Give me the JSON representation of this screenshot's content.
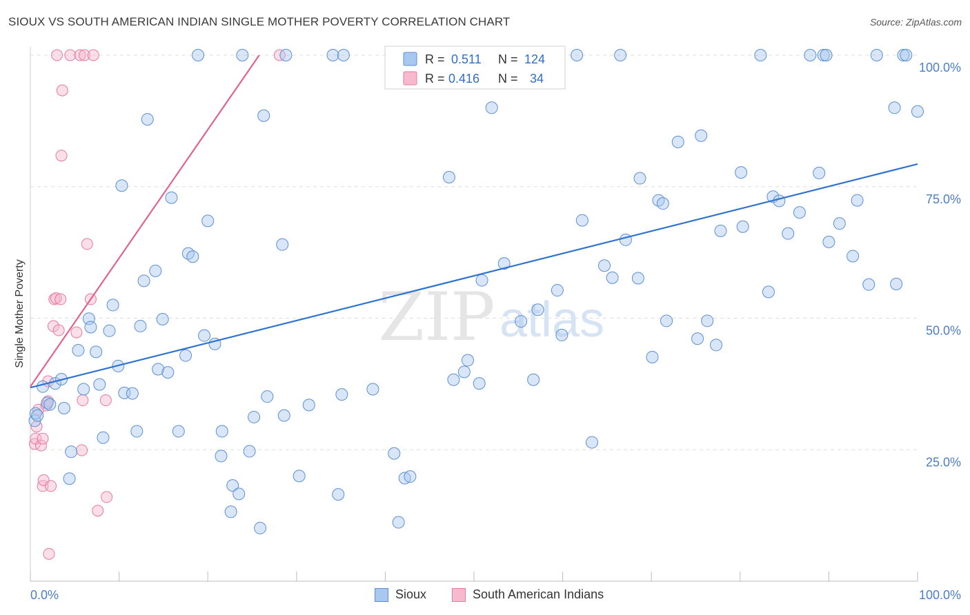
{
  "title": "SIOUX VS SOUTH AMERICAN INDIAN SINGLE MOTHER POVERTY CORRELATION CHART",
  "source": "Source: ZipAtlas.com",
  "watermark": {
    "zip": "ZIP",
    "atlas": "atlas"
  },
  "colors": {
    "sioux_fill": "#a9c8ef",
    "sioux_stroke": "#5b8fd4",
    "sioux_line": "#2f72cf",
    "sa_fill": "#f6b9cd",
    "sa_stroke": "#e67a9e",
    "sa_line": "#e0628e",
    "axis_text": "#4a7ec9",
    "grid": "#dddddd"
  },
  "legend": {
    "rows": [
      {
        "r_label": "R =",
        "r_value": "0.511",
        "n_label": "N =",
        "n_value": "124"
      },
      {
        "r_label": "R =",
        "r_value": "0.416",
        "n_label": "N =",
        "n_value": "34"
      }
    ]
  },
  "bottom_legend": {
    "sioux": "Sioux",
    "sa": "South American Indians"
  },
  "chart_data": {
    "type": "scatter",
    "xlabel": "",
    "ylabel": "Single Mother Poverty",
    "xlim": [
      0,
      100
    ],
    "ylim": [
      0,
      100
    ],
    "x_tick_labels": [
      "0.0%",
      "100.0%"
    ],
    "y_tick_labels": [
      "25.0%",
      "50.0%",
      "75.0%",
      "100.0%"
    ],
    "y_ticks": [
      25,
      50,
      75,
      100
    ],
    "grid": true,
    "legend_position": "top-center",
    "series": [
      {
        "name": "Sioux",
        "r": 0.511,
        "n": 124,
        "trend": [
          [
            0,
            36.8
          ],
          [
            100,
            79.3
          ]
        ],
        "points": [
          [
            0.5,
            30.5
          ],
          [
            0.6,
            31.9
          ],
          [
            0.8,
            31.5
          ],
          [
            1.4,
            37.0
          ],
          [
            1.9,
            33.9
          ],
          [
            2.2,
            33.6
          ],
          [
            2.8,
            37.6
          ],
          [
            3.5,
            38.4
          ],
          [
            3.8,
            32.9
          ],
          [
            4.6,
            24.6
          ],
          [
            4.4,
            19.5
          ],
          [
            5.4,
            43.9
          ],
          [
            6.0,
            36.5
          ],
          [
            6.6,
            49.9
          ],
          [
            6.8,
            48.3
          ],
          [
            7.4,
            43.6
          ],
          [
            7.8,
            37.4
          ],
          [
            8.2,
            27.3
          ],
          [
            8.9,
            47.6
          ],
          [
            9.3,
            52.5
          ],
          [
            9.9,
            40.9
          ],
          [
            10.3,
            75.2
          ],
          [
            10.6,
            35.8
          ],
          [
            11.5,
            35.7
          ],
          [
            12.0,
            28.5
          ],
          [
            12.4,
            48.5
          ],
          [
            12.8,
            57.1
          ],
          [
            13.2,
            87.8
          ],
          [
            14.1,
            59.0
          ],
          [
            14.4,
            40.3
          ],
          [
            14.9,
            49.8
          ],
          [
            15.5,
            39.7
          ],
          [
            15.9,
            72.9
          ],
          [
            16.7,
            28.5
          ],
          [
            17.5,
            42.9
          ],
          [
            17.8,
            62.3
          ],
          [
            18.3,
            61.7
          ],
          [
            18.9,
            100.0
          ],
          [
            20.0,
            68.5
          ],
          [
            19.6,
            46.7
          ],
          [
            20.8,
            45.1
          ],
          [
            21.5,
            23.8
          ],
          [
            21.6,
            28.5
          ],
          [
            22.6,
            13.2
          ],
          [
            22.8,
            18.2
          ],
          [
            23.5,
            16.6
          ],
          [
            23.9,
            100.0
          ],
          [
            24.7,
            24.7
          ],
          [
            25.2,
            31.2
          ],
          [
            25.9,
            10.1
          ],
          [
            26.3,
            88.5
          ],
          [
            26.7,
            35.1
          ],
          [
            28.4,
            64.0
          ],
          [
            28.6,
            31.5
          ],
          [
            28.8,
            100.0
          ],
          [
            30.3,
            20.0
          ],
          [
            31.4,
            33.5
          ],
          [
            34.1,
            100.0
          ],
          [
            34.7,
            16.5
          ],
          [
            35.1,
            35.5
          ],
          [
            35.3,
            100.0
          ],
          [
            38.6,
            36.5
          ],
          [
            41.0,
            24.3
          ],
          [
            41.5,
            11.2
          ],
          [
            42.2,
            19.6
          ],
          [
            42.8,
            19.9
          ],
          [
            43.0,
            100.0
          ],
          [
            45.4,
            100.0
          ],
          [
            47.2,
            76.8
          ],
          [
            47.7,
            38.3
          ],
          [
            48.9,
            39.8
          ],
          [
            49.3,
            42.0
          ],
          [
            50.6,
            37.6
          ],
          [
            50.9,
            57.2
          ],
          [
            52.0,
            90.0
          ],
          [
            53.4,
            60.4
          ],
          [
            54.1,
            100.0
          ],
          [
            55.3,
            49.4
          ],
          [
            56.7,
            38.3
          ],
          [
            57.2,
            51.6
          ],
          [
            59.4,
            55.3
          ],
          [
            59.9,
            46.8
          ],
          [
            61.6,
            100.0
          ],
          [
            62.2,
            68.6
          ],
          [
            63.3,
            26.4
          ],
          [
            64.7,
            60.0
          ],
          [
            65.6,
            57.7
          ],
          [
            66.5,
            100.0
          ],
          [
            67.1,
            64.9
          ],
          [
            68.5,
            57.6
          ],
          [
            68.7,
            76.6
          ],
          [
            70.1,
            42.6
          ],
          [
            70.8,
            72.4
          ],
          [
            71.3,
            71.8
          ],
          [
            71.7,
            49.5
          ],
          [
            73.0,
            83.5
          ],
          [
            75.2,
            46.1
          ],
          [
            75.6,
            84.7
          ],
          [
            76.3,
            49.5
          ],
          [
            77.3,
            44.9
          ],
          [
            77.8,
            66.6
          ],
          [
            80.1,
            77.7
          ],
          [
            80.3,
            67.4
          ],
          [
            82.3,
            100.0
          ],
          [
            83.2,
            55.0
          ],
          [
            83.7,
            73.1
          ],
          [
            84.4,
            72.3
          ],
          [
            85.4,
            66.1
          ],
          [
            86.7,
            70.1
          ],
          [
            87.9,
            100.0
          ],
          [
            88.9,
            77.6
          ],
          [
            89.4,
            100.0
          ],
          [
            89.7,
            100.0
          ],
          [
            90.0,
            64.5
          ],
          [
            91.2,
            68.0
          ],
          [
            92.7,
            61.8
          ],
          [
            93.2,
            72.4
          ],
          [
            94.5,
            56.4
          ],
          [
            95.4,
            100.0
          ],
          [
            97.4,
            90.0
          ],
          [
            97.6,
            56.5
          ],
          [
            98.4,
            100.0
          ],
          [
            98.7,
            100.0
          ],
          [
            100.0,
            89.3
          ]
        ]
      },
      {
        "name": "South American Indians",
        "r": 0.416,
        "n": 34,
        "trend": [
          [
            0,
            37.0
          ],
          [
            25.8,
            100.0
          ]
        ],
        "points": [
          [
            0.5,
            26.1
          ],
          [
            0.6,
            27.1
          ],
          [
            0.7,
            29.4
          ],
          [
            0.9,
            32.6
          ],
          [
            1.2,
            25.8
          ],
          [
            1.4,
            27.1
          ],
          [
            1.4,
            18.1
          ],
          [
            1.5,
            19.2
          ],
          [
            1.8,
            33.4
          ],
          [
            2.0,
            38.0
          ],
          [
            2.0,
            34.2
          ],
          [
            2.1,
            5.2
          ],
          [
            2.3,
            18.1
          ],
          [
            2.6,
            48.5
          ],
          [
            2.7,
            53.6
          ],
          [
            2.9,
            53.8
          ],
          [
            3.0,
            100.0
          ],
          [
            3.2,
            47.7
          ],
          [
            3.4,
            53.6
          ],
          [
            3.5,
            80.9
          ],
          [
            3.6,
            93.3
          ],
          [
            4.5,
            100.0
          ],
          [
            5.2,
            47.3
          ],
          [
            5.6,
            100.0
          ],
          [
            5.8,
            24.9
          ],
          [
            5.9,
            34.4
          ],
          [
            6.1,
            100.0
          ],
          [
            6.4,
            64.1
          ],
          [
            6.8,
            53.6
          ],
          [
            7.1,
            100.0
          ],
          [
            7.6,
            13.4
          ],
          [
            8.5,
            34.4
          ],
          [
            8.6,
            16.0
          ],
          [
            28.1,
            100.0
          ]
        ]
      }
    ]
  }
}
